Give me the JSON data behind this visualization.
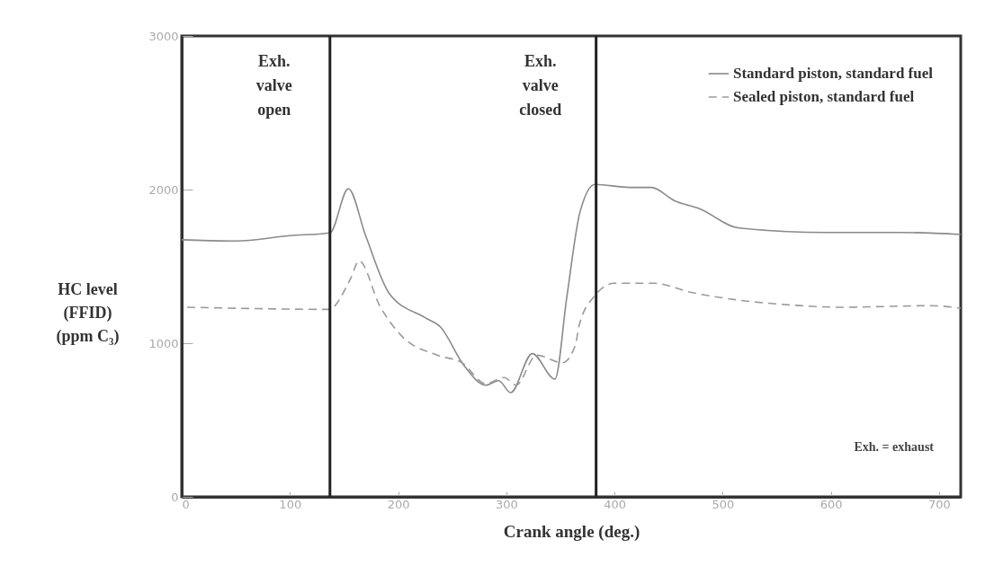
{
  "chart_data": {
    "type": "line",
    "xlabel": "Crank angle (deg.)",
    "ylabel": "HC level (FFID) (ppm C₃)",
    "xlim": [
      0,
      720
    ],
    "ylim": [
      0,
      3000
    ],
    "xticks": [
      0,
      100,
      200,
      300,
      400,
      500,
      600,
      700
    ],
    "yticks": [
      0,
      1000,
      2000,
      3000
    ],
    "grid": false,
    "legend": "top right",
    "series": [
      {
        "name": "Standard piston, standard fuel",
        "color": "#8a8a8a",
        "line_style": "solid",
        "x": [
          0,
          50,
          100,
          137,
          154,
          170,
          192,
          225,
          239,
          261,
          281,
          293,
          304,
          324,
          345,
          356,
          368,
          382,
          414,
          434,
          456,
          478,
          515,
          595,
          665,
          720
        ],
        "values": [
          1673,
          1665,
          1700,
          1718,
          2006,
          1700,
          1322,
          1166,
          1107,
          854,
          727,
          756,
          678,
          932,
          766,
          1304,
          1850,
          2034,
          2014,
          2014,
          1926,
          1877,
          1750,
          1721,
          1721,
          1708
        ]
      },
      {
        "name": "Sealed piston, standard fuel",
        "color": "#9a9a9a",
        "line_style": "dashed",
        "x": [
          5,
          70,
          136,
          156,
          164,
          183,
          203,
          236,
          259,
          281,
          298,
          309,
          328,
          352,
          364,
          367,
          381,
          400,
          437,
          470,
          512,
          567,
          609,
          693,
          720
        ],
        "values": [
          1234,
          1225,
          1220,
          1419,
          1536,
          1244,
          1049,
          922,
          873,
          737,
          776,
          727,
          922,
          873,
          990,
          1107,
          1302,
          1390,
          1390,
          1332,
          1283,
          1247,
          1234,
          1244,
          1228
        ]
      }
    ],
    "ref_lines": [
      {
        "axis": "x",
        "value": 137,
        "label": "Exh. valve open",
        "color": "#222222"
      },
      {
        "axis": "x",
        "value": 383,
        "label": "Exh. valve closed",
        "color": "#222222"
      }
    ],
    "annotations": [
      "Exh. = exhaust"
    ]
  }
}
